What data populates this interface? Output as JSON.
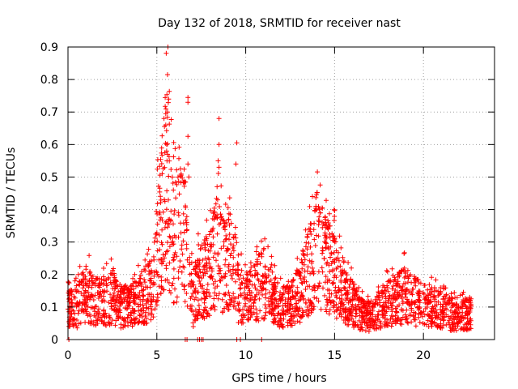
{
  "chart_data": {
    "type": "scatter",
    "title": "Day 132 of 2018, SRMTID for receiver nast",
    "xlabel": "GPS time / hours",
    "ylabel": "SRMTID / TECUs",
    "xlim": [
      0,
      24
    ],
    "ylim": [
      0,
      0.9
    ],
    "xticks": [
      0,
      5,
      10,
      15,
      20
    ],
    "yticks": [
      0,
      0.1,
      0.2,
      0.3,
      0.4,
      0.5,
      0.6,
      0.7,
      0.8,
      0.9
    ],
    "xtick_labels": [
      "0",
      "5",
      "10",
      "15",
      "20"
    ],
    "ytick_labels": [
      "0",
      "0.1",
      "0.2",
      "0.3",
      "0.4",
      "0.5",
      "0.6",
      "0.7",
      "0.8",
      "0.9"
    ],
    "grid": true,
    "marker": "+",
    "color": "#ff0000",
    "envelope": {
      "description": "approximate typical SRMTID level vs time (hours)",
      "points": [
        [
          0,
          0.09
        ],
        [
          0.5,
          0.1
        ],
        [
          1,
          0.14
        ],
        [
          1.5,
          0.12
        ],
        [
          2,
          0.11
        ],
        [
          2.5,
          0.13
        ],
        [
          3,
          0.1
        ],
        [
          3.5,
          0.1
        ],
        [
          4,
          0.12
        ],
        [
          4.5,
          0.14
        ],
        [
          4.8,
          0.18
        ],
        [
          5,
          0.26
        ],
        [
          5.3,
          0.4
        ],
        [
          5.6,
          0.5
        ],
        [
          5.8,
          0.35
        ],
        [
          6,
          0.3
        ],
        [
          6.3,
          0.36
        ],
        [
          6.6,
          0.3
        ],
        [
          7,
          0.14
        ],
        [
          7.5,
          0.18
        ],
        [
          8,
          0.2
        ],
        [
          8.4,
          0.28
        ],
        [
          8.8,
          0.22
        ],
        [
          9.2,
          0.25
        ],
        [
          9.6,
          0.14
        ],
        [
          10,
          0.12
        ],
        [
          10.5,
          0.15
        ],
        [
          11,
          0.17
        ],
        [
          11.5,
          0.13
        ],
        [
          12,
          0.1
        ],
        [
          12.5,
          0.1
        ],
        [
          13,
          0.14
        ],
        [
          13.5,
          0.2
        ],
        [
          14,
          0.28
        ],
        [
          14.5,
          0.24
        ],
        [
          15,
          0.2
        ],
        [
          15.5,
          0.13
        ],
        [
          16,
          0.11
        ],
        [
          16.5,
          0.08
        ],
        [
          17,
          0.07
        ],
        [
          17.5,
          0.09
        ],
        [
          18,
          0.11
        ],
        [
          18.5,
          0.12
        ],
        [
          19,
          0.14
        ],
        [
          19.5,
          0.12
        ],
        [
          20,
          0.11
        ],
        [
          20.5,
          0.1
        ],
        [
          21,
          0.09
        ],
        [
          21.5,
          0.08
        ],
        [
          22,
          0.07
        ],
        [
          22.5,
          0.08
        ]
      ]
    },
    "highlight_points": [
      {
        "x": 5.6,
        "y": 0.815
      },
      {
        "x": 6.75,
        "y": 0.745
      },
      {
        "x": 6.75,
        "y": 0.73
      },
      {
        "x": 8.5,
        "y": 0.68
      },
      {
        "x": 9.5,
        "y": 0.605
      },
      {
        "x": 5.5,
        "y": 0.695
      },
      {
        "x": 5.6,
        "y": 0.7
      },
      {
        "x": 5.4,
        "y": 0.68
      },
      {
        "x": 5.5,
        "y": 0.66
      },
      {
        "x": 6.75,
        "y": 0.625
      },
      {
        "x": 5.55,
        "y": 0.58
      },
      {
        "x": 5.6,
        "y": 0.57
      },
      {
        "x": 8.5,
        "y": 0.6
      },
      {
        "x": 8.45,
        "y": 0.55
      },
      {
        "x": 8.5,
        "y": 0.53
      },
      {
        "x": 9.45,
        "y": 0.54
      },
      {
        "x": 6.75,
        "y": 0.54
      },
      {
        "x": 6.8,
        "y": 0.5
      },
      {
        "x": 5.3,
        "y": 0.51
      },
      {
        "x": 13.95,
        "y": 0.41
      },
      {
        "x": 14.2,
        "y": 0.39
      },
      {
        "x": 14.5,
        "y": 0.36
      },
      {
        "x": 7.05,
        "y": 0.04
      },
      {
        "x": 7.3,
        "y": 0.0
      },
      {
        "x": 7.4,
        "y": 0.0
      },
      {
        "x": 7.5,
        "y": 0.0
      },
      {
        "x": 7.6,
        "y": 0.0
      },
      {
        "x": 6.6,
        "y": 0.0
      },
      {
        "x": 6.7,
        "y": 0.0
      },
      {
        "x": 9.5,
        "y": 0.0
      },
      {
        "x": 9.7,
        "y": 0.0
      },
      {
        "x": 10.9,
        "y": 0.0
      },
      {
        "x": 0.05,
        "y": 0.0
      }
    ],
    "time_range_hours": [
      0,
      22.7
    ],
    "num_points": 2600
  }
}
